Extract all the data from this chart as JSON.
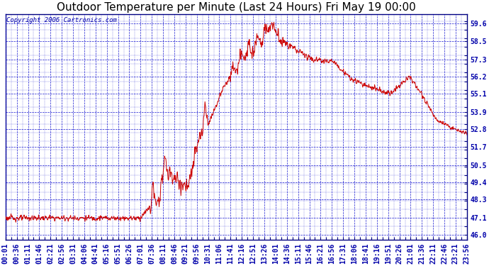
{
  "title": "Outdoor Temperature per Minute (Last 24 Hours) Fri May 19 00:00",
  "copyright": "Copyright 2006 Cartronics.com",
  "background_color": "#FFFFFF",
  "plot_bg_color": "#FFFFFF",
  "grid_color": "#0000CC",
  "line_color": "#CC0000",
  "text_color": "#000000",
  "label_color": "#0000AA",
  "ytick_labels": [
    "46.0",
    "47.1",
    "48.3",
    "49.4",
    "50.5",
    "51.7",
    "52.8",
    "53.9",
    "55.1",
    "56.2",
    "57.3",
    "58.5",
    "59.6"
  ],
  "ytick_values": [
    46.0,
    47.1,
    48.3,
    49.4,
    50.5,
    51.7,
    52.8,
    53.9,
    55.1,
    56.2,
    57.3,
    58.5,
    59.6
  ],
  "ylim": [
    45.7,
    60.2
  ],
  "xlim": [
    0,
    1439
  ],
  "xtick_labels": [
    "00:01",
    "00:36",
    "01:11",
    "01:46",
    "02:21",
    "02:56",
    "03:31",
    "04:06",
    "04:41",
    "05:16",
    "05:51",
    "06:26",
    "07:01",
    "07:36",
    "08:11",
    "08:46",
    "09:21",
    "09:56",
    "10:31",
    "11:06",
    "11:41",
    "12:16",
    "12:51",
    "13:26",
    "14:01",
    "14:36",
    "15:11",
    "15:46",
    "16:21",
    "16:56",
    "17:31",
    "18:06",
    "18:41",
    "19:16",
    "19:51",
    "20:26",
    "21:01",
    "21:36",
    "22:11",
    "22:46",
    "23:21",
    "23:56"
  ],
  "title_fontsize": 11,
  "tick_fontsize": 7,
  "copyright_fontsize": 6.5
}
